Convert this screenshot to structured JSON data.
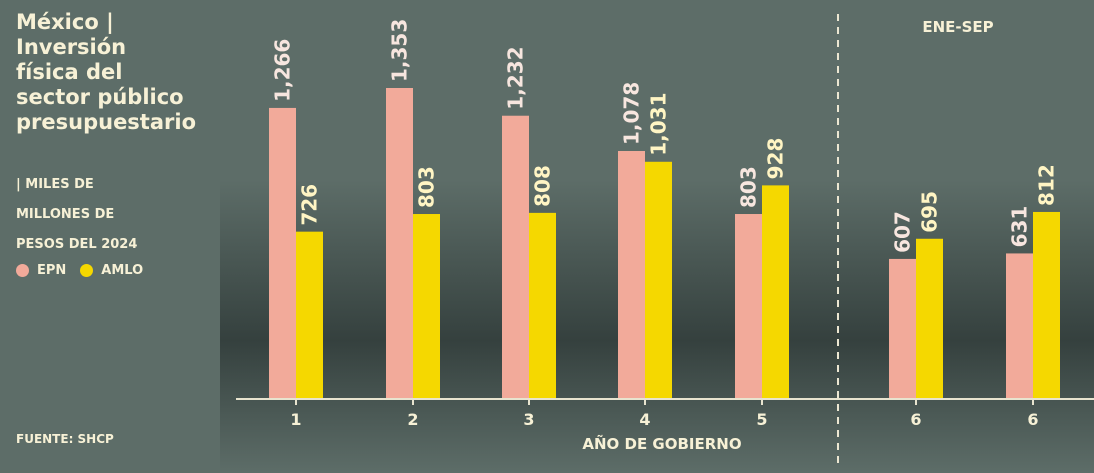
{
  "title_lines": [
    "México |",
    "Inversión",
    "física del",
    "sector público",
    "presupuestario"
  ],
  "subtitle_lines": [
    "| MILES DE",
    "MILLONES DE",
    "PESOS DEL 2024"
  ],
  "source": "FUENTE: SHCP",
  "colors": {
    "EPN": "#f2aa9a",
    "AMLO": "#f5d800",
    "axis": "#e8e4cf"
  },
  "chart_data": {
    "type": "bar",
    "xlabel": "AÑO DE GOBIERNO",
    "annotation": "ENE-SEP",
    "categories": [
      "1",
      "2",
      "3",
      "4",
      "5",
      "6",
      "6"
    ],
    "series": [
      {
        "name": "EPN",
        "values": [
          1266,
          1353,
          1232,
          1078,
          803,
          607,
          631
        ],
        "labels": [
          "1,266",
          "1,353",
          "1,232",
          "1,078",
          "803",
          "607",
          "631"
        ]
      },
      {
        "name": "AMLO",
        "values": [
          726,
          803,
          808,
          1031,
          928,
          695,
          812
        ],
        "labels": [
          "726",
          "803",
          "808",
          "1,031",
          "928",
          "695",
          "812"
        ]
      }
    ],
    "ylim": [
      0,
      1420
    ]
  }
}
